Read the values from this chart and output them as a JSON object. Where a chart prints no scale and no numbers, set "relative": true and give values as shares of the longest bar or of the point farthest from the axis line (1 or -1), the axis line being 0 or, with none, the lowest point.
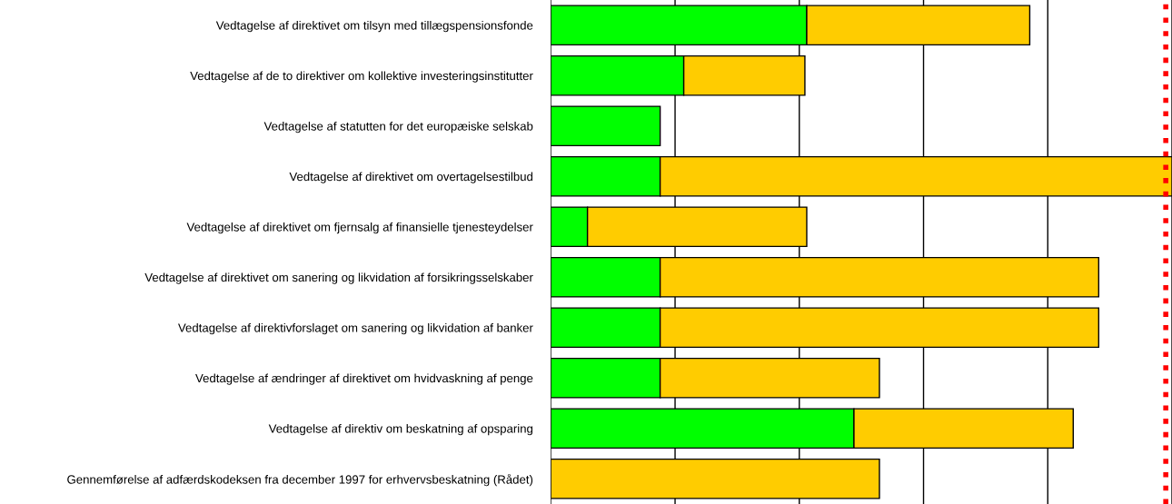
{
  "chart_data": {
    "type": "bar",
    "orientation": "horizontal",
    "stacked": true,
    "relative": true,
    "grid": "x",
    "tick_labels": "y",
    "categories": [
      "Vedtagelse af direktivet om tilsyn med tillægspensionsfonde",
      "Vedtagelse af de to direktiver om kollektive investeringsinstitutter",
      "Vedtagelse af statutten for det europæiske selskab",
      "Vedtagelse af direktivet om overtagelsestilbud",
      "Vedtagelse af direktivet om fjernsalg af finansielle tjenesteydelser",
      "Vedtagelse af direktivet om sanering og likvidation af forsikringsselskaber",
      "Vedtagelse af direktivforslaget om sanering og likvidation af banker",
      "Vedtagelse af ændringer af direktivet om hvidvaskning af penge",
      "Vedtagelse af direktiv om beskatning af opsparing",
      "Gennemførelse af adfærdskodeksen fra december 1997 for erhvervsbeskatning (Rådet)"
    ],
    "series": [
      {
        "color": "#00ff00",
        "values": [
          0.412,
          0.214,
          0.176,
          0.176,
          0.059,
          0.176,
          0.176,
          0.176,
          0.488,
          null
        ]
      },
      {
        "color": "#ffcc00",
        "values": [
          0.359,
          0.195,
          null,
          0.824,
          0.353,
          0.706,
          0.706,
          0.353,
          0.353,
          0.529
        ]
      }
    ],
    "ref_lines": [
      {
        "axis": "x",
        "value": 0.99,
        "color": "#ff0000",
        "line_style": "dotted"
      }
    ]
  }
}
